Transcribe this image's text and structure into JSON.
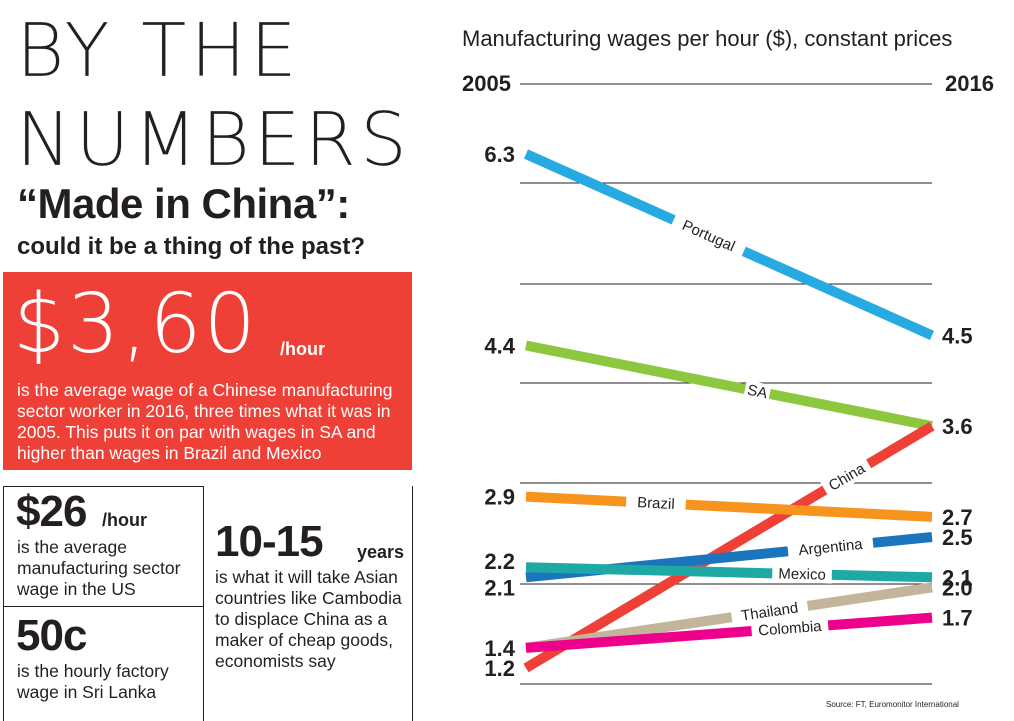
{
  "header": {
    "title_line1": "BY THE",
    "title_line2": "NUMBERS",
    "headline": "“Made in China”:",
    "subheadline": "could it be a thing of the past?"
  },
  "highlight": {
    "value": "$3,60",
    "unit": "/hour",
    "text": "is the average wage of a Chinese manufacturing sector worker in 2016, three times what it was in 2005. This puts it on par with wages in SA and higher than wages in Brazil and Mexico"
  },
  "stats": [
    {
      "value": "$26",
      "unit": "/hour",
      "text": "is the average manufacturing  sector wage in the US"
    },
    {
      "value": "50c",
      "unit": "",
      "text": "is the hourly factory wage in Sri Lanka"
    },
    {
      "value": "10-15",
      "unit": "years",
      "text": "is what it will take Asian countries like Cambodia to displace China as a maker of cheap goods, economists say"
    }
  ],
  "colors": {
    "red_box": "#ee4036",
    "text": "#231f20",
    "grid": "#231f20"
  },
  "chart_data": {
    "type": "line",
    "title": "Manufacturing wages per hour ($), constant prices",
    "x": [
      "2005",
      "2016"
    ],
    "grid": true,
    "series": [
      {
        "name": "Portugal",
        "values": [
          6.3,
          4.5
        ],
        "color": "#27aae1",
        "start_label": "6.3",
        "end_label": "4.5"
      },
      {
        "name": "SA",
        "values": [
          4.4,
          3.6
        ],
        "color": "#8dc63f",
        "start_label": "4.4",
        "end_label": "3.6"
      },
      {
        "name": "China",
        "values": [
          1.2,
          3.6
        ],
        "color": "#ee4036",
        "start_label": "1.2",
        "end_label": ""
      },
      {
        "name": "Brazil",
        "values": [
          2.9,
          2.7
        ],
        "color": "#f7941d",
        "start_label": "2.9",
        "end_label": "2.7"
      },
      {
        "name": "Argentina",
        "values": [
          2.1,
          2.5
        ],
        "color": "#1b75bc",
        "start_label": "2.1",
        "end_label": "2.5"
      },
      {
        "name": "Mexico",
        "values": [
          2.2,
          2.1
        ],
        "color": "#1fa9a5",
        "start_label": "2.2",
        "end_label": "2.1"
      },
      {
        "name": "Thailand",
        "values": [
          1.4,
          2.0
        ],
        "color": "#c2b59b",
        "start_label": "",
        "end_label": "2.0"
      },
      {
        "name": "Colombia",
        "values": [
          1.4,
          1.7
        ],
        "color": "#ec008c",
        "start_label": "1.4",
        "end_label": "1.7"
      }
    ],
    "source": "Source: FT, Euromonitor International"
  }
}
